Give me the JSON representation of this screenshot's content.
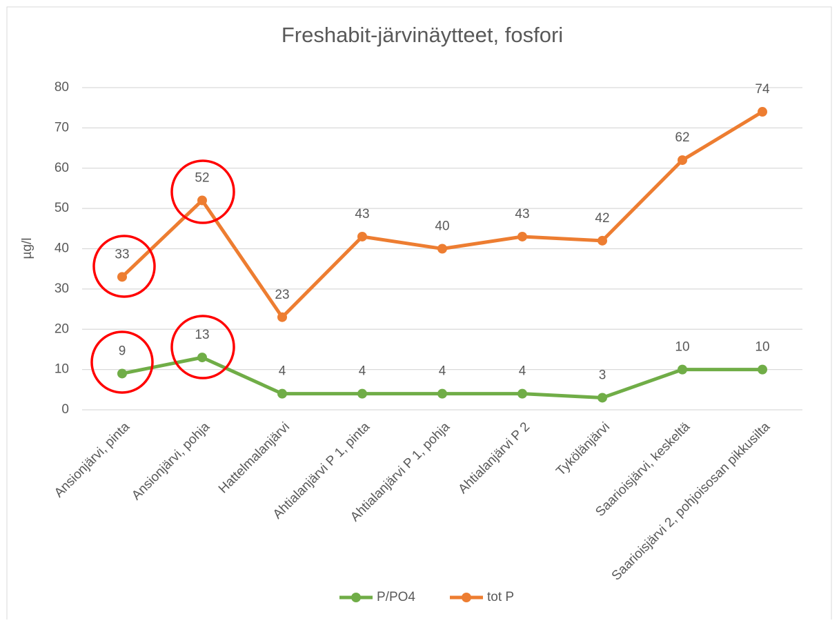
{
  "chart_data": {
    "type": "line",
    "title": "Freshabit-järvinäytteet, fosfori",
    "y_label": "µg/l",
    "categories": [
      "Ansionjärvi, pinta",
      "Ansionjärvi, pohja",
      "Hattelmalanjärvi",
      "Ahtialanjärvi P 1, pinta",
      "Ahtialanjärvi P 1, pohja",
      "Ahtialanjärvi P 2",
      "Tykölänjärvi",
      "Saarioisjärvi, keskeltä",
      "Saarioisjärvi 2, pohjoisosan pikkusilta"
    ],
    "series": [
      {
        "name": "P/PO4",
        "color": "#70ad47",
        "values": [
          9,
          13,
          4,
          4,
          4,
          4,
          3,
          10,
          10
        ]
      },
      {
        "name": "tot P",
        "color": "#ed7d31",
        "values": [
          33,
          52,
          23,
          43,
          40,
          43,
          42,
          62,
          74
        ]
      }
    ],
    "ylim": [
      0,
      80
    ],
    "yticks": [
      0,
      10,
      20,
      30,
      40,
      50,
      60,
      70,
      80
    ],
    "grid": true,
    "legend": "bottom"
  }
}
